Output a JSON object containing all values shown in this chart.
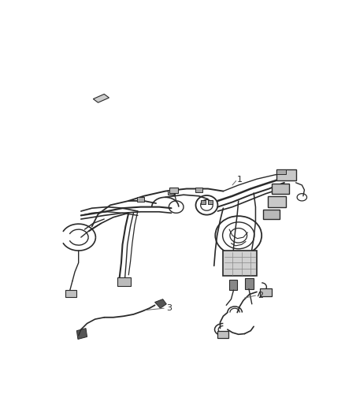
{
  "background_color": "#ffffff",
  "line_color": "#2a2a2a",
  "label_color": "#2a2a2a",
  "label_font_size": 8,
  "fig_width": 4.38,
  "fig_height": 5.33
}
